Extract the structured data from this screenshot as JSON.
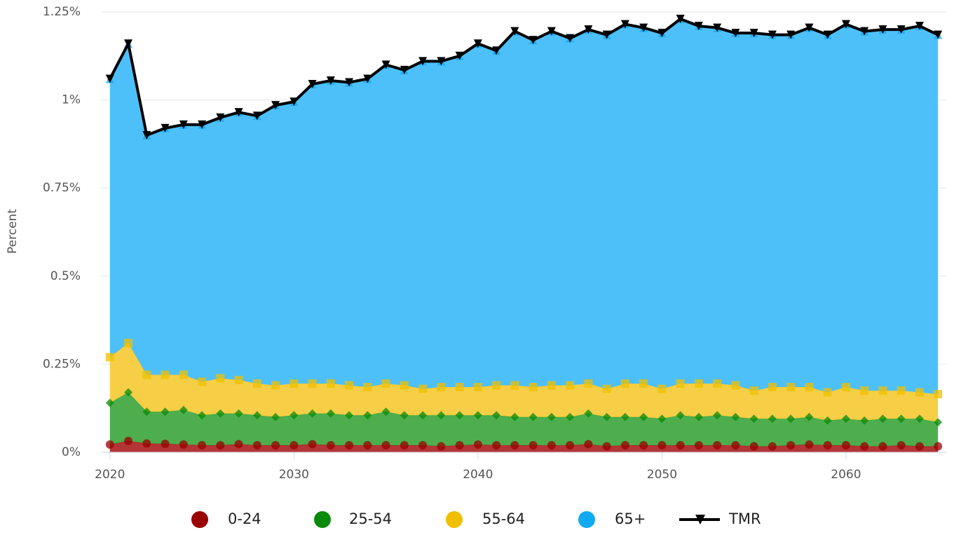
{
  "chart_data": {
    "type": "area",
    "stacked": true,
    "y_label": "Percent",
    "x": [
      2020,
      2021,
      2022,
      2023,
      2024,
      2025,
      2026,
      2027,
      2028,
      2029,
      2030,
      2031,
      2032,
      2033,
      2034,
      2035,
      2036,
      2037,
      2038,
      2039,
      2040,
      2041,
      2042,
      2043,
      2044,
      2045,
      2046,
      2047,
      2048,
      2049,
      2050,
      2051,
      2052,
      2053,
      2054,
      2055,
      2056,
      2057,
      2058,
      2059,
      2060,
      2061,
      2062,
      2063,
      2064,
      2065
    ],
    "xlim": [
      2019.55,
      2065.45
    ],
    "xticks": [
      2020,
      2030,
      2040,
      2050,
      2060
    ],
    "ylim": [
      0,
      1.25
    ],
    "yticks": [
      {
        "value": 0,
        "label": "0%"
      },
      {
        "value": 0.25,
        "label": "0.25%"
      },
      {
        "value": 0.5,
        "label": "0.5%"
      },
      {
        "value": 0.75,
        "label": "0.75%"
      },
      {
        "value": 1,
        "label": "1%"
      },
      {
        "value": 1.25,
        "label": "1.25%"
      }
    ],
    "grid": true,
    "legend": "bottom",
    "series": [
      {
        "name": "0-24",
        "color": "#990000",
        "fill": "#b02a2a",
        "marker": "circle",
        "values": [
          0.022,
          0.032,
          0.025,
          0.024,
          0.022,
          0.02,
          0.02,
          0.023,
          0.02,
          0.02,
          0.02,
          0.023,
          0.02,
          0.02,
          0.02,
          0.02,
          0.02,
          0.02,
          0.017,
          0.02,
          0.022,
          0.02,
          0.02,
          0.02,
          0.02,
          0.02,
          0.023,
          0.017,
          0.02,
          0.02,
          0.02,
          0.02,
          0.02,
          0.02,
          0.02,
          0.017,
          0.017,
          0.02,
          0.022,
          0.02,
          0.02,
          0.017,
          0.017,
          0.02,
          0.017,
          0.017
        ]
      },
      {
        "name": "25-54",
        "color": "#0a8a0a",
        "fill": "#44aa44",
        "marker": "diamond",
        "values": [
          0.118,
          0.138,
          0.09,
          0.091,
          0.098,
          0.085,
          0.09,
          0.087,
          0.085,
          0.08,
          0.085,
          0.087,
          0.09,
          0.085,
          0.085,
          0.095,
          0.085,
          0.085,
          0.088,
          0.085,
          0.083,
          0.085,
          0.08,
          0.08,
          0.08,
          0.08,
          0.087,
          0.083,
          0.08,
          0.08,
          0.075,
          0.085,
          0.08,
          0.085,
          0.08,
          0.078,
          0.078,
          0.075,
          0.078,
          0.07,
          0.075,
          0.073,
          0.078,
          0.075,
          0.078,
          0.068
        ]
      },
      {
        "name": "55-64",
        "color": "#f0c000",
        "fill": "#f5cc3d",
        "marker": "square",
        "values": [
          0.13,
          0.14,
          0.105,
          0.105,
          0.1,
          0.095,
          0.1,
          0.095,
          0.09,
          0.09,
          0.09,
          0.085,
          0.085,
          0.085,
          0.08,
          0.08,
          0.085,
          0.075,
          0.08,
          0.08,
          0.08,
          0.085,
          0.09,
          0.085,
          0.09,
          0.09,
          0.085,
          0.08,
          0.095,
          0.095,
          0.085,
          0.09,
          0.095,
          0.09,
          0.09,
          0.08,
          0.09,
          0.09,
          0.085,
          0.08,
          0.09,
          0.085,
          0.08,
          0.08,
          0.075,
          0.08
        ]
      },
      {
        "name": "65+",
        "color": "#11aaf0",
        "fill": "#45bdf9",
        "marker": "triangle",
        "values": [
          0.79,
          0.85,
          0.68,
          0.7,
          0.71,
          0.73,
          0.74,
          0.76,
          0.76,
          0.795,
          0.8,
          0.85,
          0.86,
          0.86,
          0.875,
          0.905,
          0.895,
          0.93,
          0.925,
          0.94,
          0.975,
          0.95,
          1.005,
          0.985,
          1.005,
          0.985,
          1.005,
          1.005,
          1.02,
          1.01,
          1.01,
          1.035,
          1.015,
          1.01,
          1.0,
          1.015,
          1.0,
          1.0,
          1.02,
          1.015,
          1.03,
          1.02,
          1.025,
          1.025,
          1.04,
          1.02
        ]
      },
      {
        "name": "TMR",
        "color": "#000000",
        "type": "line",
        "marker": "triangle-down",
        "values": [
          1.06,
          1.16,
          0.9,
          0.92,
          0.93,
          0.93,
          0.95,
          0.965,
          0.955,
          0.985,
          0.995,
          1.045,
          1.055,
          1.05,
          1.06,
          1.1,
          1.085,
          1.11,
          1.11,
          1.125,
          1.16,
          1.14,
          1.195,
          1.17,
          1.195,
          1.175,
          1.2,
          1.185,
          1.215,
          1.205,
          1.19,
          1.23,
          1.21,
          1.205,
          1.19,
          1.19,
          1.185,
          1.185,
          1.205,
          1.185,
          1.215,
          1.195,
          1.2,
          1.2,
          1.21,
          1.185
        ]
      }
    ]
  }
}
